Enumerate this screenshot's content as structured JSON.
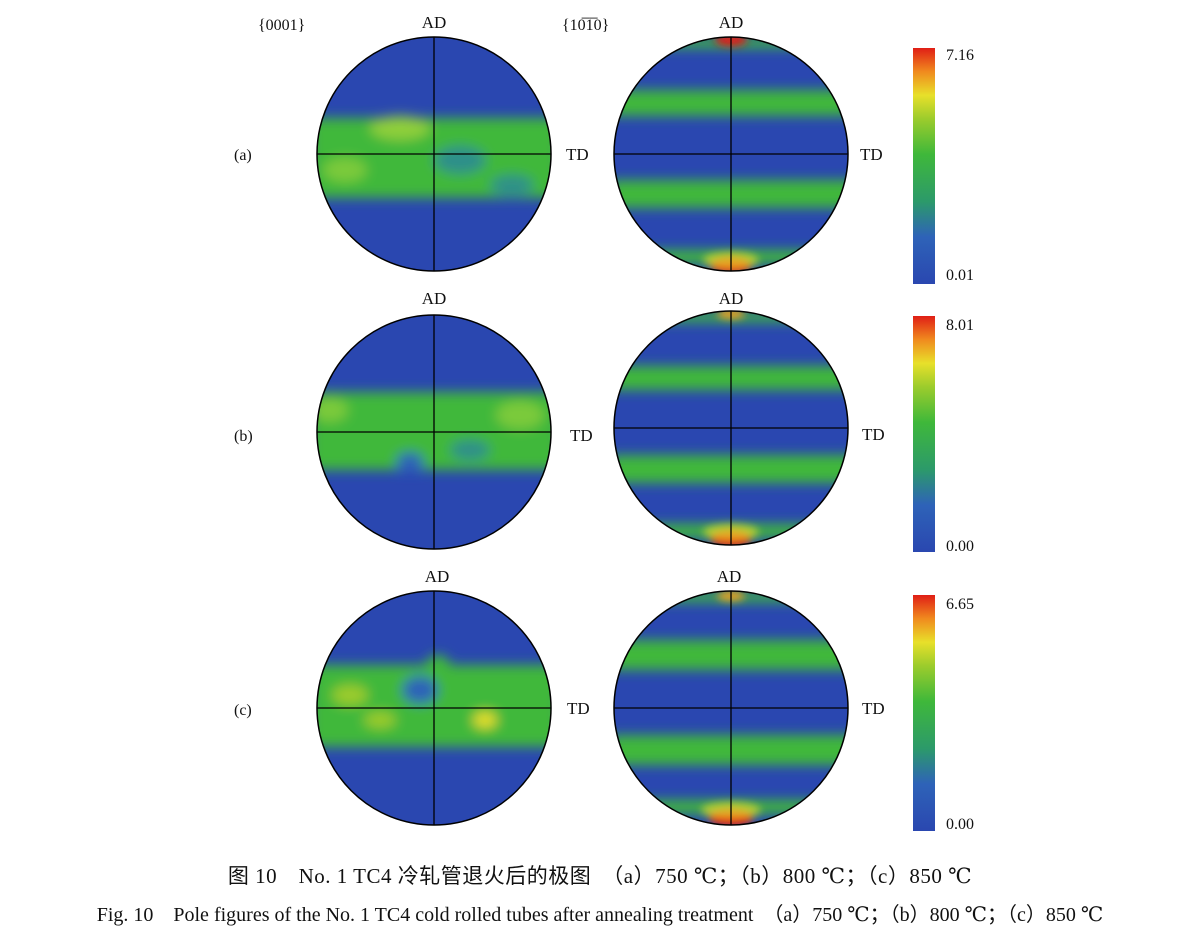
{
  "column_headers": [
    "{0001}",
    "{10̅1̅0}"
  ],
  "direction_labels": {
    "ad": "AD",
    "td": "TD"
  },
  "rows": [
    {
      "label": "(a)",
      "colorbar": {
        "max": "7.16",
        "min": "0.01"
      }
    },
    {
      "label": "(b)",
      "colorbar": {
        "max": "8.01",
        "min": "0.00"
      }
    },
    {
      "label": "(c)",
      "colorbar": {
        "max": "6.65",
        "min": "0.00"
      }
    }
  ],
  "colors": {
    "low": "#2a47b0",
    "mid": "#3fb83a",
    "high_yellow": "#e8e02a",
    "peak": "#e01e16"
  },
  "caption_cn": "图 10　No. 1 TC4 冷轧管退火后的极图　（a）750 ℃；（b）800 ℃；（c）850 ℃",
  "caption_en": "Fig. 10　Pole figures of the No. 1 TC4 cold rolled tubes after annealing treatment　（a）750 ℃；（b）800 ℃；（c）850 ℃"
}
